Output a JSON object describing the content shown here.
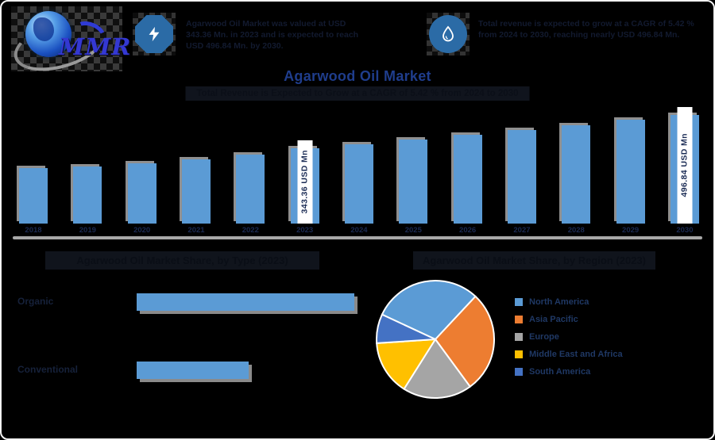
{
  "brand": {
    "logo_text": "MMR"
  },
  "header": {
    "stats": [
      {
        "icon": "lightning-icon",
        "text": "Agarwood Oil Market was valued at USD 343.36 Mn. in 2023 and is expected to reach USD 496.84 Mn. by 2030."
      },
      {
        "icon": "oil-drop-icon",
        "text": "Total revenue is expected to grow at a CAGR of 5.42 % from 2024 to 2030, reaching nearly USD 496.84 Mn."
      }
    ]
  },
  "title": "Agarwood Oil Market",
  "subtitle": "Total Revenue is Expected to Grow at a CAGR of 5.42 % from 2024 to 2030",
  "colors": {
    "title_blue": "#1f3d8c",
    "bar_blue": "#5b9bd5",
    "bar_shadow_gray": "#8f8f8f",
    "axis_gray": "#a8a8a8",
    "icon_bg_blue": "#2b6ba6",
    "legend_text_navy": "#1f3864",
    "callout_bg": "#ffffff"
  },
  "chart_data": [
    {
      "type": "bar",
      "title": "Agarwood Oil Market Revenue (USD Mn)",
      "categories": [
        "2018",
        "2019",
        "2020",
        "2021",
        "2022",
        "2023",
        "2024",
        "2025",
        "2026",
        "2027",
        "2028",
        "2029",
        "2030"
      ],
      "values": [
        253,
        262,
        275,
        291,
        316,
        343.36,
        362,
        382,
        404,
        426,
        448,
        472,
        496.84
      ],
      "callouts": [
        {
          "index": 5,
          "label": "343.36 USD Mn"
        },
        {
          "index": 12,
          "label": "496.84 USD Mn"
        }
      ],
      "bar_color": "#5b9bd5",
      "ylabel": "USD Mn",
      "ylim": [
        0,
        550
      ],
      "grid": false
    },
    {
      "type": "bar",
      "orientation": "horizontal",
      "title": "Agarwood Oil Market Share, by Type (2023)",
      "categories": [
        "Organic",
        "Conventional"
      ],
      "values": [
        66,
        34
      ],
      "unit": "%",
      "bar_color": "#5b9bd5",
      "xlim": [
        0,
        100
      ]
    },
    {
      "type": "pie",
      "title": "Agarwood Oil Market Share, by Region (2023)",
      "labels": [
        "North America",
        "Asia Pacific",
        "Europe",
        "Middle East and Africa",
        "South America"
      ],
      "values": [
        30,
        28,
        19,
        15,
        8
      ],
      "colors": [
        "#5b9bd5",
        "#ed7d31",
        "#a5a5a5",
        "#ffc000",
        "#4472c4"
      ],
      "start_angle_deg": -65,
      "legend_position": "right"
    }
  ]
}
